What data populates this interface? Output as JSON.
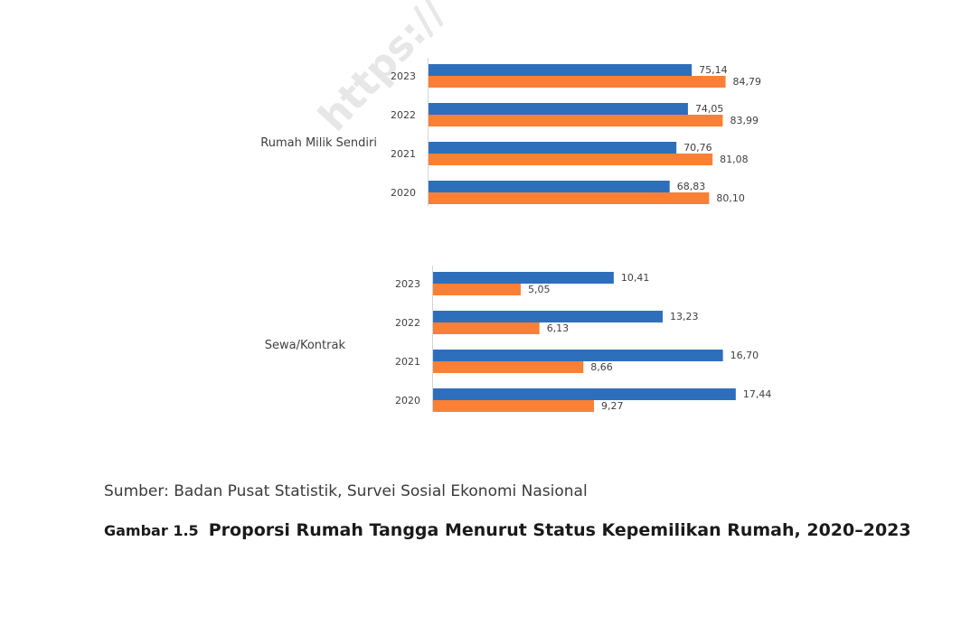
{
  "watermark": "https://",
  "chart_data": {
    "type": "bar",
    "orientation": "horizontal",
    "colors": {
      "series_1": "#2e6fbc",
      "series_2": "#f98035"
    },
    "groups": [
      {
        "label": "Rumah Milik Sendiri",
        "categories": [
          "2023",
          "2022",
          "2021",
          "2020"
        ],
        "series": [
          {
            "values": [
              75.14,
              74.05,
              70.76,
              68.83
            ],
            "value_labels": [
              "75,14",
              "74,05",
              "70,76",
              "68,83"
            ]
          },
          {
            "values": [
              84.79,
              83.99,
              81.08,
              80.1
            ],
            "value_labels": [
              "84,79",
              "83,99",
              "81,08",
              "80,10"
            ]
          }
        ]
      },
      {
        "label": "Sewa/Kontrak",
        "categories": [
          "2023",
          "2022",
          "2021",
          "2020"
        ],
        "series": [
          {
            "values": [
              10.41,
              13.23,
              16.7,
              17.44
            ],
            "value_labels": [
              "10,41",
              "13,23",
              "16,70",
              "17,44"
            ]
          },
          {
            "values": [
              5.05,
              6.13,
              8.66,
              9.27
            ],
            "value_labels": [
              "5,05",
              "6,13",
              "8,66",
              "9,27"
            ]
          }
        ]
      }
    ]
  },
  "source": "Sumber: Badan Pusat Statistik, Survei Sosial Ekonomi Nasional",
  "caption": {
    "number": "Gambar 1.5",
    "title": "Proporsi Rumah Tangga Menurut Status Kepemilikan Rumah, 2020–2023"
  }
}
